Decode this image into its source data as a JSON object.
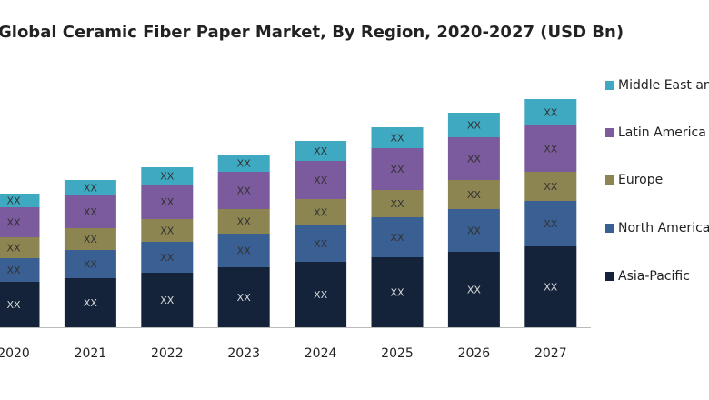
{
  "chart_data": {
    "type": "stacked_bar",
    "title": "Global Ceramic Fiber Paper Market, By Region, 2020-2027 (USD Bn)",
    "categories": [
      "2020",
      "2021",
      "2022",
      "2023",
      "2024",
      "2025",
      "2026",
      "2027"
    ],
    "series": [
      {
        "name": "Asia-Pacific",
        "color": "#14233a",
        "values": [
          50,
          54,
          60,
          66,
          72,
          77,
          83,
          89
        ],
        "value_labels": [
          "XX",
          "XX",
          "XX",
          "XX",
          "XX",
          "XX",
          "XX",
          "XX"
        ]
      },
      {
        "name": "North America",
        "color": "#3a5f92",
        "values": [
          26,
          31,
          34,
          37,
          40,
          44,
          47,
          50
        ],
        "value_labels": [
          "XX",
          "XX",
          "XX",
          "XX",
          "XX",
          "XX",
          "XX",
          "XX"
        ]
      },
      {
        "name": "Europe",
        "color": "#8c8552",
        "values": [
          23,
          24,
          25,
          27,
          29,
          30,
          32,
          32
        ],
        "value_labels": [
          "XX",
          "XX",
          "XX",
          "XX",
          "XX",
          "XX",
          "XX",
          "XX"
        ]
      },
      {
        "name": "Latin America",
        "color": "#7b5a9e",
        "values": [
          33,
          36,
          38,
          41,
          42,
          46,
          47,
          51
        ],
        "value_labels": [
          "XX",
          "XX",
          "XX",
          "XX",
          "XX",
          "XX",
          "XX",
          "XX"
        ]
      },
      {
        "name": "Middle East and Africa",
        "color": "#3fa9c2",
        "values": [
          15,
          17,
          19,
          19,
          22,
          23,
          27,
          29
        ],
        "value_labels": [
          "XX",
          "XX",
          "XX",
          "XX",
          "XX",
          "XX",
          "XX",
          "XX"
        ]
      }
    ],
    "legend": "right"
  }
}
